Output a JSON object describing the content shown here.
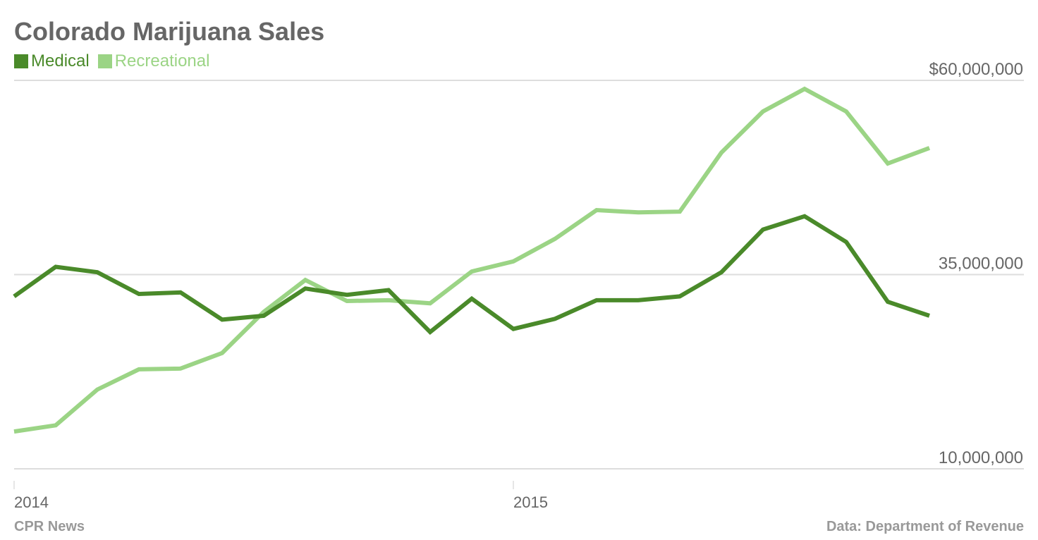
{
  "chart_data": {
    "type": "line",
    "title": "Colorado Marijuana Sales",
    "y_ticks": [
      {
        "value": 60000000,
        "label": "$60,000,000"
      },
      {
        "value": 35000000,
        "label": "35,000,000"
      },
      {
        "value": 10000000,
        "label": "10,000,000"
      }
    ],
    "ylim": [
      10000000,
      60000000
    ],
    "x_ticks": [
      {
        "index": 0,
        "label": "2014"
      },
      {
        "index": 12,
        "label": "2015"
      }
    ],
    "x_count": 23,
    "grid": true,
    "legend_position": "top-left",
    "series": [
      {
        "name": "Medical",
        "color": "#4a8a2a",
        "values": [
          32200000,
          36000000,
          35300000,
          32500000,
          32700000,
          29200000,
          29700000,
          33200000,
          32400000,
          33000000,
          27600000,
          31900000,
          28000000,
          29300000,
          31700000,
          31700000,
          32200000,
          35300000,
          40800000,
          42500000,
          39200000,
          31500000,
          29700000
        ]
      },
      {
        "name": "Recreational",
        "color": "#9bd485",
        "values": [
          14800000,
          15600000,
          20200000,
          22800000,
          22900000,
          24900000,
          30200000,
          34300000,
          31600000,
          31700000,
          31300000,
          35400000,
          36700000,
          39600000,
          43300000,
          43000000,
          43100000,
          50700000,
          56000000,
          58900000,
          56000000,
          49300000,
          51300000
        ]
      }
    ]
  },
  "footer": {
    "source_left": "CPR News",
    "source_right": "Data: Department of Revenue"
  }
}
